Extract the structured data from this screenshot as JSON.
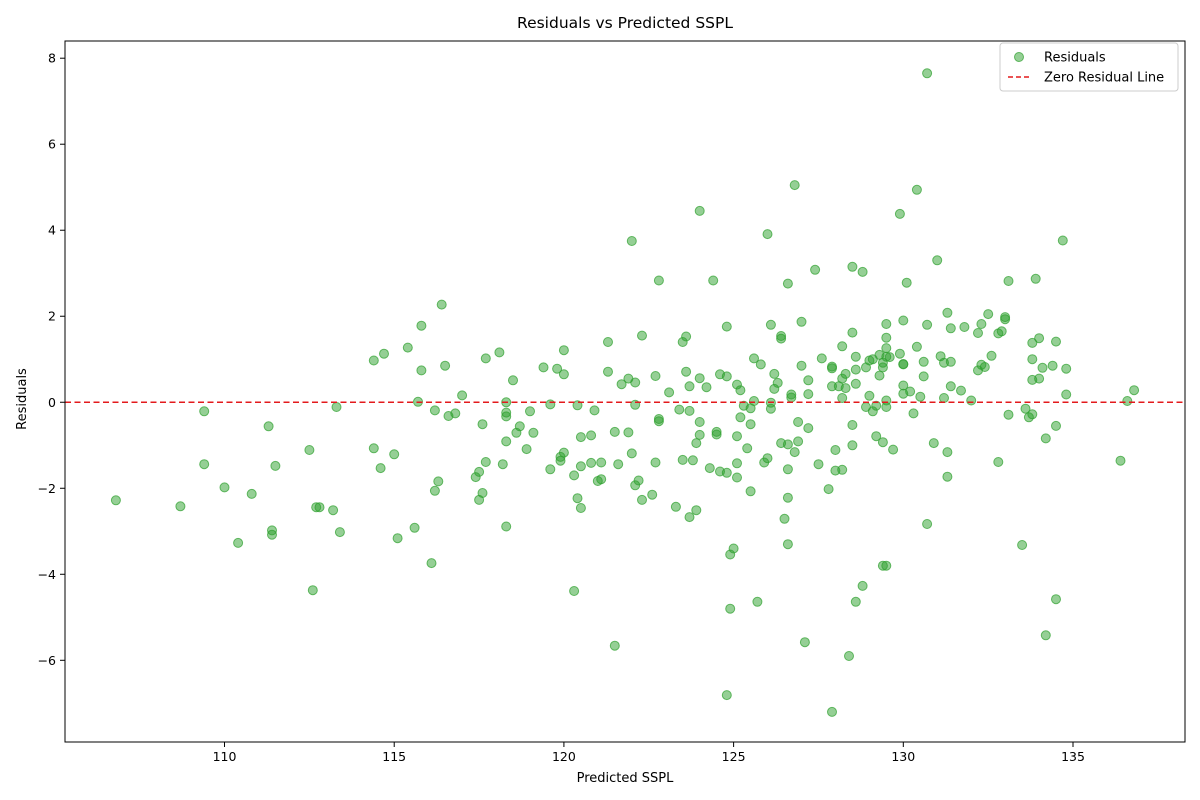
{
  "chart_data": {
    "type": "scatter",
    "title": "Residuals vs Predicted SSPL",
    "xlabel": "Predicted SSPL",
    "ylabel": "Residuals",
    "xlim": [
      105.3,
      138.3
    ],
    "ylim": [
      -7.9,
      8.4
    ],
    "xticks": [
      110,
      115,
      120,
      125,
      130,
      135
    ],
    "yticks": [
      -6,
      -4,
      -2,
      0,
      2,
      4,
      6,
      8
    ],
    "grid": false,
    "legend_position": "top-right",
    "colors": {
      "points": "#2ca02c",
      "zero_line": "#e31a1c",
      "axes": "#000000"
    },
    "series": [
      {
        "name": "Residuals",
        "kind": "scatter",
        "points": [
          [
            106.8,
            -2.28
          ],
          [
            108.7,
            -2.42
          ],
          [
            109.4,
            -0.21
          ],
          [
            109.4,
            -1.44
          ],
          [
            110.0,
            -1.98
          ],
          [
            110.4,
            -3.27
          ],
          [
            110.8,
            -2.13
          ],
          [
            111.3,
            -0.56
          ],
          [
            111.4,
            -2.98
          ],
          [
            111.4,
            -3.08
          ],
          [
            111.5,
            -1.48
          ],
          [
            112.5,
            -1.11
          ],
          [
            112.6,
            -4.37
          ],
          [
            112.7,
            -2.44
          ],
          [
            112.8,
            -2.44
          ],
          [
            113.2,
            -2.51
          ],
          [
            113.3,
            -0.11
          ],
          [
            113.4,
            -3.02
          ],
          [
            114.4,
            0.97
          ],
          [
            114.4,
            -1.07
          ],
          [
            114.7,
            1.13
          ],
          [
            114.6,
            -1.53
          ],
          [
            115.0,
            -1.21
          ],
          [
            115.1,
            -3.16
          ],
          [
            115.4,
            1.27
          ],
          [
            115.6,
            -2.92
          ],
          [
            115.7,
            0.01
          ],
          [
            115.8,
            1.78
          ],
          [
            115.8,
            0.74
          ],
          [
            116.1,
            -3.74
          ],
          [
            116.2,
            -0.19
          ],
          [
            116.2,
            -2.06
          ],
          [
            116.3,
            -1.84
          ],
          [
            116.4,
            2.27
          ],
          [
            116.5,
            0.85
          ],
          [
            116.6,
            -0.32
          ],
          [
            116.8,
            -0.26
          ],
          [
            117.0,
            0.16
          ],
          [
            117.4,
            -1.74
          ],
          [
            117.5,
            -1.62
          ],
          [
            117.5,
            -2.27
          ],
          [
            117.6,
            -2.11
          ],
          [
            117.6,
            -0.51
          ],
          [
            117.7,
            -1.39
          ],
          [
            117.7,
            1.02
          ],
          [
            118.1,
            1.16
          ],
          [
            118.2,
            -1.44
          ],
          [
            118.3,
            -0.33
          ],
          [
            118.3,
            -0.91
          ],
          [
            118.3,
            0.0
          ],
          [
            118.3,
            -0.24
          ],
          [
            118.3,
            -2.89
          ],
          [
            118.5,
            0.51
          ],
          [
            118.6,
            -0.71
          ],
          [
            118.7,
            -0.56
          ],
          [
            118.9,
            -1.09
          ],
          [
            119.0,
            -0.21
          ],
          [
            119.1,
            -0.71
          ],
          [
            119.4,
            0.81
          ],
          [
            119.6,
            -1.56
          ],
          [
            119.6,
            -0.05
          ],
          [
            119.8,
            0.78
          ],
          [
            119.9,
            -1.27
          ],
          [
            119.9,
            -1.36
          ],
          [
            120.0,
            1.21
          ],
          [
            120.0,
            0.65
          ],
          [
            120.0,
            -1.17
          ],
          [
            120.3,
            -4.39
          ],
          [
            120.3,
            -1.7
          ],
          [
            120.4,
            -2.23
          ],
          [
            120.4,
            -0.07
          ],
          [
            120.5,
            -0.81
          ],
          [
            120.5,
            -1.49
          ],
          [
            120.5,
            -2.46
          ],
          [
            120.8,
            -1.41
          ],
          [
            120.8,
            -0.77
          ],
          [
            120.9,
            -0.19
          ],
          [
            121.0,
            -1.83
          ],
          [
            121.1,
            -1.79
          ],
          [
            121.1,
            -1.4
          ],
          [
            121.3,
            0.71
          ],
          [
            121.3,
            1.4
          ],
          [
            121.5,
            -0.69
          ],
          [
            121.5,
            -5.66
          ],
          [
            121.6,
            -1.44
          ],
          [
            121.7,
            0.42
          ],
          [
            121.9,
            -0.7
          ],
          [
            121.9,
            0.55
          ],
          [
            122.0,
            -1.19
          ],
          [
            122.0,
            3.75
          ],
          [
            122.1,
            -1.93
          ],
          [
            122.1,
            0.46
          ],
          [
            122.1,
            -0.06
          ],
          [
            122.2,
            -1.82
          ],
          [
            122.3,
            -2.27
          ],
          [
            122.3,
            1.55
          ],
          [
            122.6,
            -2.15
          ],
          [
            122.7,
            0.61
          ],
          [
            122.7,
            -1.4
          ],
          [
            122.8,
            2.83
          ],
          [
            122.8,
            -0.44
          ],
          [
            122.8,
            -0.39
          ],
          [
            123.1,
            0.23
          ],
          [
            123.3,
            -2.43
          ],
          [
            123.4,
            -0.17
          ],
          [
            123.5,
            1.4
          ],
          [
            123.5,
            -1.34
          ],
          [
            123.6,
            1.53
          ],
          [
            123.6,
            0.71
          ],
          [
            123.7,
            -2.67
          ],
          [
            123.7,
            0.37
          ],
          [
            123.7,
            -0.2
          ],
          [
            123.8,
            -1.35
          ],
          [
            123.9,
            -2.51
          ],
          [
            123.9,
            -0.95
          ],
          [
            124.0,
            4.45
          ],
          [
            124.0,
            0.56
          ],
          [
            124.0,
            -0.46
          ],
          [
            124.0,
            -0.76
          ],
          [
            124.2,
            0.35
          ],
          [
            124.3,
            -1.53
          ],
          [
            124.4,
            2.83
          ],
          [
            124.5,
            -0.75
          ],
          [
            124.5,
            -0.69
          ],
          [
            124.6,
            0.65
          ],
          [
            124.6,
            -1.61
          ],
          [
            124.8,
            0.6
          ],
          [
            124.8,
            1.76
          ],
          [
            124.8,
            -1.64
          ],
          [
            124.8,
            -6.81
          ],
          [
            124.9,
            -3.54
          ],
          [
            125.0,
            -3.4
          ],
          [
            124.9,
            -4.8
          ],
          [
            125.1,
            -0.79
          ],
          [
            125.1,
            -1.42
          ],
          [
            125.1,
            -1.75
          ],
          [
            125.1,
            0.41
          ],
          [
            125.2,
            -0.35
          ],
          [
            125.2,
            0.28
          ],
          [
            125.3,
            -0.08
          ],
          [
            125.4,
            -1.07
          ],
          [
            125.5,
            -0.51
          ],
          [
            125.5,
            -0.14
          ],
          [
            125.5,
            -2.07
          ],
          [
            125.6,
            1.02
          ],
          [
            125.6,
            0.03
          ],
          [
            125.7,
            -4.64
          ],
          [
            125.8,
            0.88
          ],
          [
            125.9,
            -1.4
          ],
          [
            126.0,
            3.91
          ],
          [
            126.0,
            -1.3
          ],
          [
            126.1,
            -0.01
          ],
          [
            126.1,
            -0.15
          ],
          [
            126.1,
            1.8
          ],
          [
            126.2,
            0.66
          ],
          [
            126.2,
            0.31
          ],
          [
            126.3,
            0.45
          ],
          [
            126.4,
            1.54
          ],
          [
            126.4,
            1.48
          ],
          [
            126.4,
            -0.95
          ],
          [
            126.5,
            -2.71
          ],
          [
            126.6,
            2.76
          ],
          [
            126.6,
            -0.98
          ],
          [
            126.6,
            -1.56
          ],
          [
            126.6,
            -2.22
          ],
          [
            126.6,
            -3.3
          ],
          [
            126.7,
            0.18
          ],
          [
            126.7,
            0.11
          ],
          [
            126.8,
            5.05
          ],
          [
            126.8,
            -1.16
          ],
          [
            126.9,
            -0.46
          ],
          [
            126.9,
            -0.91
          ],
          [
            127.0,
            1.87
          ],
          [
            127.0,
            0.85
          ],
          [
            127.1,
            -5.58
          ],
          [
            127.2,
            0.51
          ],
          [
            127.2,
            -0.6
          ],
          [
            127.2,
            0.19
          ],
          [
            127.4,
            3.08
          ],
          [
            127.5,
            -1.44
          ],
          [
            127.6,
            1.02
          ],
          [
            127.8,
            -2.02
          ],
          [
            127.9,
            0.83
          ],
          [
            127.9,
            -7.2
          ],
          [
            127.9,
            0.37
          ],
          [
            127.9,
            0.79
          ],
          [
            128.0,
            -1.11
          ],
          [
            128.0,
            -1.59
          ],
          [
            128.1,
            0.37
          ],
          [
            128.2,
            1.3
          ],
          [
            128.2,
            0.55
          ],
          [
            128.2,
            0.1
          ],
          [
            128.2,
            -1.57
          ],
          [
            128.3,
            0.66
          ],
          [
            128.3,
            0.33
          ],
          [
            128.4,
            -5.9
          ],
          [
            128.5,
            3.15
          ],
          [
            128.5,
            1.62
          ],
          [
            128.5,
            -0.53
          ],
          [
            128.5,
            -1.0
          ],
          [
            128.6,
            1.06
          ],
          [
            128.6,
            0.43
          ],
          [
            128.6,
            0.76
          ],
          [
            128.6,
            -4.64
          ],
          [
            128.8,
            3.03
          ],
          [
            128.8,
            -4.27
          ],
          [
            128.9,
            0.81
          ],
          [
            128.9,
            -0.11
          ],
          [
            129.0,
            0.97
          ],
          [
            129.0,
            0.15
          ],
          [
            129.1,
            1.0
          ],
          [
            129.1,
            -0.21
          ],
          [
            129.2,
            -0.08
          ],
          [
            129.2,
            -0.79
          ],
          [
            129.3,
            0.62
          ],
          [
            129.3,
            1.1
          ],
          [
            129.4,
            -0.93
          ],
          [
            129.4,
            -3.8
          ],
          [
            129.4,
            0.81
          ],
          [
            129.4,
            0.92
          ],
          [
            129.5,
            -3.8
          ],
          [
            129.5,
            1.26
          ],
          [
            129.5,
            1.5
          ],
          [
            129.5,
            1.06
          ],
          [
            129.5,
            0.04
          ],
          [
            129.5,
            -0.11
          ],
          [
            129.5,
            1.82
          ],
          [
            129.6,
            1.05
          ],
          [
            129.7,
            -1.1
          ],
          [
            129.9,
            4.38
          ],
          [
            129.9,
            1.13
          ],
          [
            130.0,
            0.39
          ],
          [
            130.0,
            1.9
          ],
          [
            130.0,
            0.89
          ],
          [
            130.0,
            0.2
          ],
          [
            130.0,
            0.88
          ],
          [
            130.1,
            2.78
          ],
          [
            130.2,
            0.25
          ],
          [
            130.3,
            -0.26
          ],
          [
            130.4,
            4.94
          ],
          [
            130.4,
            1.29
          ],
          [
            130.5,
            0.13
          ],
          [
            130.6,
            0.94
          ],
          [
            130.6,
            0.6
          ],
          [
            130.7,
            7.65
          ],
          [
            130.7,
            1.8
          ],
          [
            130.7,
            -2.83
          ],
          [
            130.9,
            -0.95
          ],
          [
            131.0,
            3.3
          ],
          [
            131.1,
            1.07
          ],
          [
            131.2,
            0.92
          ],
          [
            131.2,
            0.1
          ],
          [
            131.3,
            -1.73
          ],
          [
            131.3,
            -1.16
          ],
          [
            131.3,
            2.08
          ],
          [
            131.4,
            0.37
          ],
          [
            131.4,
            1.72
          ],
          [
            131.4,
            0.94
          ],
          [
            131.7,
            0.27
          ],
          [
            131.8,
            1.75
          ],
          [
            132.0,
            0.04
          ],
          [
            132.2,
            1.61
          ],
          [
            132.2,
            0.74
          ],
          [
            132.3,
            0.87
          ],
          [
            132.3,
            1.82
          ],
          [
            132.4,
            0.82
          ],
          [
            132.5,
            2.05
          ],
          [
            132.6,
            1.08
          ],
          [
            132.8,
            1.6
          ],
          [
            132.8,
            -1.39
          ],
          [
            132.9,
            1.65
          ],
          [
            133.0,
            1.93
          ],
          [
            133.0,
            1.98
          ],
          [
            133.1,
            2.82
          ],
          [
            133.1,
            -0.29
          ],
          [
            133.5,
            -3.32
          ],
          [
            133.6,
            -0.15
          ],
          [
            133.7,
            -0.35
          ],
          [
            133.8,
            1.38
          ],
          [
            133.8,
            0.52
          ],
          [
            133.8,
            -0.28
          ],
          [
            133.8,
            1.0
          ],
          [
            133.9,
            2.87
          ],
          [
            134.0,
            1.49
          ],
          [
            134.0,
            0.55
          ],
          [
            134.1,
            0.8
          ],
          [
            134.2,
            -5.42
          ],
          [
            134.2,
            -0.84
          ],
          [
            134.4,
            0.85
          ],
          [
            134.5,
            1.41
          ],
          [
            134.5,
            -0.55
          ],
          [
            134.5,
            -4.58
          ],
          [
            134.7,
            3.76
          ],
          [
            134.8,
            0.78
          ],
          [
            134.8,
            0.18
          ],
          [
            136.4,
            -1.36
          ],
          [
            136.6,
            0.03
          ],
          [
            136.8,
            0.28
          ]
        ]
      },
      {
        "name": "Zero Residual Line",
        "kind": "line",
        "y": 0
      }
    ]
  }
}
